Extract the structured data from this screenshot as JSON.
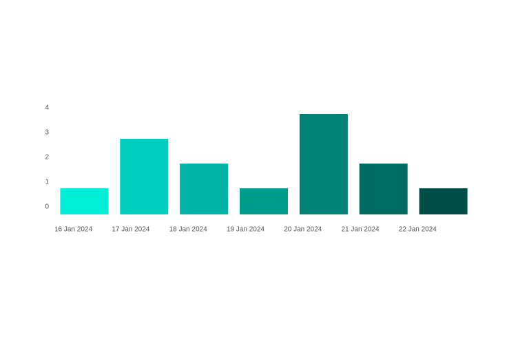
{
  "chart_data": {
    "type": "bar",
    "categories": [
      "16 Jan 2024",
      "17 Jan 2024",
      "18 Jan 2024",
      "19 Jan 2024",
      "20 Jan 2024",
      "21 Jan 2024",
      "22 Jan 2024"
    ],
    "values": [
      1,
      3,
      2,
      1,
      4,
      2,
      1
    ],
    "colors": [
      "#00EDD6",
      "#00CFC0",
      "#00B5A8",
      "#009C8E",
      "#008277",
      "#006B62",
      "#004D47"
    ],
    "yticks": [
      "0",
      "1",
      "2",
      "3",
      "4"
    ],
    "ylim": [
      0,
      4
    ],
    "grid": false,
    "legend": "none",
    "title": "",
    "xlabel": "",
    "ylabel": ""
  }
}
